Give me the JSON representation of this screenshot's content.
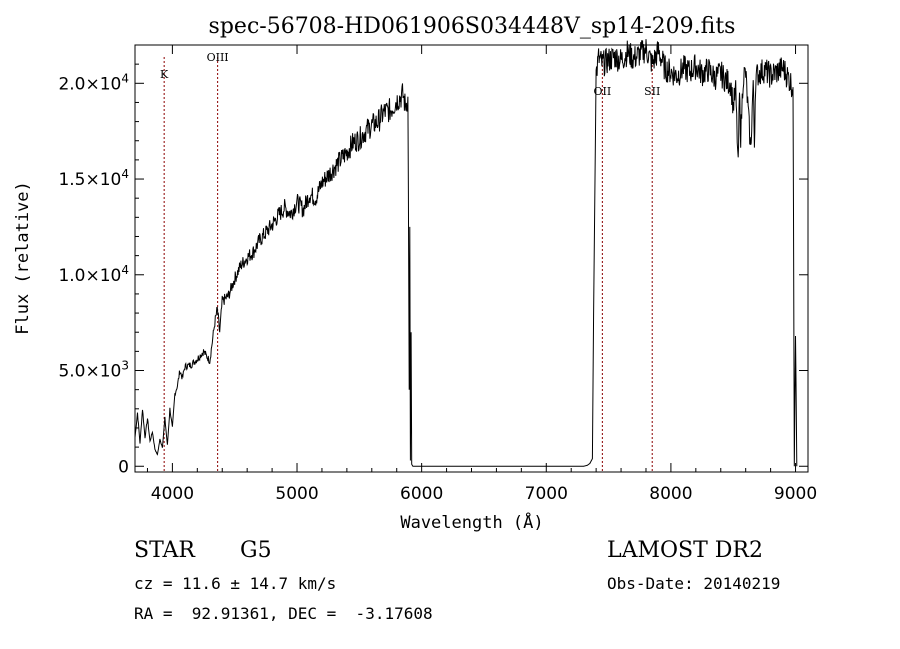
{
  "chart_data": {
    "type": "line",
    "title": "spec-56708-HD061906S034448V_sp14-209.fits",
    "xlabel": "Wavelength (Å)",
    "ylabel": "Flux (relative)",
    "xlim": [
      3700,
      9100
    ],
    "ylim": [
      -300,
      22000
    ],
    "x_ticks": [
      {
        "value": 4000,
        "label": "4000"
      },
      {
        "value": 5000,
        "label": "5000"
      },
      {
        "value": 6000,
        "label": "6000"
      },
      {
        "value": 7000,
        "label": "7000"
      },
      {
        "value": 8000,
        "label": "8000"
      },
      {
        "value": 9000,
        "label": "9000"
      }
    ],
    "y_ticks": [
      {
        "value": 0,
        "mant": "0",
        "exp": ""
      },
      {
        "value": 5000,
        "mant": "5.0×10",
        "exp": "3"
      },
      {
        "value": 10000,
        "mant": "1.0×10",
        "exp": "4"
      },
      {
        "value": 15000,
        "mant": "1.5×10",
        "exp": "4"
      },
      {
        "value": 20000,
        "mant": "2.0×10",
        "exp": "4"
      }
    ],
    "lines": [
      {
        "label": "K",
        "wavelength": 3934
      },
      {
        "label": "OIII",
        "wavelength": 4363
      },
      {
        "label": "OII",
        "wavelength": 7450
      },
      {
        "label": "SII",
        "wavelength": 7850
      }
    ],
    "line_color": "#8b0000",
    "series": [
      {
        "x": [
          3700,
          3720,
          3740,
          3760,
          3780,
          3800,
          3820,
          3840,
          3860,
          3880,
          3900,
          3920,
          3940,
          3960,
          3980,
          4000,
          4020,
          4040,
          4060,
          4080,
          4100,
          4150,
          4200,
          4250,
          4300,
          4340,
          4360,
          4380,
          4400,
          4450,
          4500,
          4550,
          4600,
          4650,
          4700,
          4750,
          4800,
          4850,
          4900,
          4950,
          5000,
          5050,
          5100,
          5150,
          5200,
          5250,
          5300,
          5350,
          5400,
          5450,
          5500,
          5550,
          5600,
          5650,
          5700,
          5750,
          5800,
          5850,
          5870,
          5890,
          5900,
          5905,
          5910,
          5915,
          5920,
          5930,
          5950,
          6000,
          6200,
          6400,
          6600,
          6800,
          7000,
          7200,
          7300,
          7330,
          7350,
          7370,
          7380,
          7400,
          7420,
          7450,
          7500,
          7550,
          7600,
          7650,
          7700,
          7750,
          7800,
          7850,
          7900,
          7950,
          8000,
          8050,
          8100,
          8150,
          8200,
          8250,
          8300,
          8350,
          8400,
          8450,
          8480,
          8500,
          8520,
          8540,
          8550,
          8560,
          8580,
          8600,
          8640,
          8660,
          8670,
          8680,
          8700,
          8750,
          8800,
          8850,
          8900,
          8950,
          8980,
          8990,
          9000,
          9010
        ],
        "y": [
          1500,
          2800,
          1200,
          3000,
          1500,
          2500,
          1300,
          1800,
          900,
          600,
          1400,
          1000,
          2500,
          1100,
          3000,
          2000,
          3800,
          4200,
          5000,
          4600,
          5200,
          5300,
          5600,
          6000,
          5500,
          7500,
          8200,
          7000,
          8600,
          8900,
          9800,
          10500,
          10900,
          11200,
          11800,
          12200,
          12600,
          13100,
          13500,
          13200,
          13800,
          13400,
          14200,
          14000,
          14800,
          15200,
          15600,
          16000,
          16400,
          16900,
          17100,
          17500,
          17800,
          18000,
          18500,
          18600,
          19100,
          19400,
          18800,
          19300,
          4000,
          12500,
          300,
          7000,
          100,
          0,
          0,
          0,
          0,
          0,
          0,
          0,
          0,
          0,
          0,
          50,
          150,
          400,
          8000,
          20500,
          21300,
          21000,
          21200,
          21400,
          21200,
          21600,
          21300,
          21500,
          21800,
          21000,
          21700,
          20800,
          20600,
          20400,
          20800,
          20600,
          20900,
          20500,
          20700,
          20300,
          20500,
          20100,
          20000,
          18800,
          19600,
          15600,
          19400,
          17200,
          20400,
          20500,
          16500,
          20100,
          16800,
          20300,
          20500,
          20700,
          20400,
          20600,
          20800,
          20200,
          19800,
          0,
          6800,
          0
        ]
      }
    ]
  },
  "info": {
    "obj_class": "STAR",
    "subclass": "G5",
    "cz": "cz = 11.6 ± 14.7 km/s",
    "radec": "RA =  92.91361, DEC =  -3.17608",
    "survey": "LAMOST DR2",
    "obsdate": "Obs-Date: 20140219"
  }
}
